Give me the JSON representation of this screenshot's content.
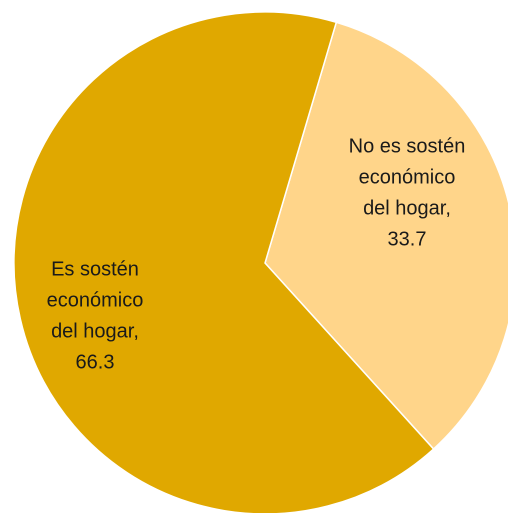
{
  "chart_data": {
    "type": "pie",
    "title": "",
    "slices": [
      {
        "label": "No es sostén económico del hogar",
        "value": 33.7,
        "label_lines": [
          "No es sostén",
          "económico",
          "del hogar,",
          "33.7"
        ],
        "color": "#FFD58A"
      },
      {
        "label": "Es sostén económico del hogar",
        "value": 66.3,
        "label_lines": [
          "Es sostén",
          "económico",
          "del hogar,",
          "66.3"
        ],
        "color": "#E0A800"
      }
    ],
    "start_angle_deg": 16.5,
    "direction": "clockwise",
    "legend": "none",
    "data_labels": "inside"
  }
}
